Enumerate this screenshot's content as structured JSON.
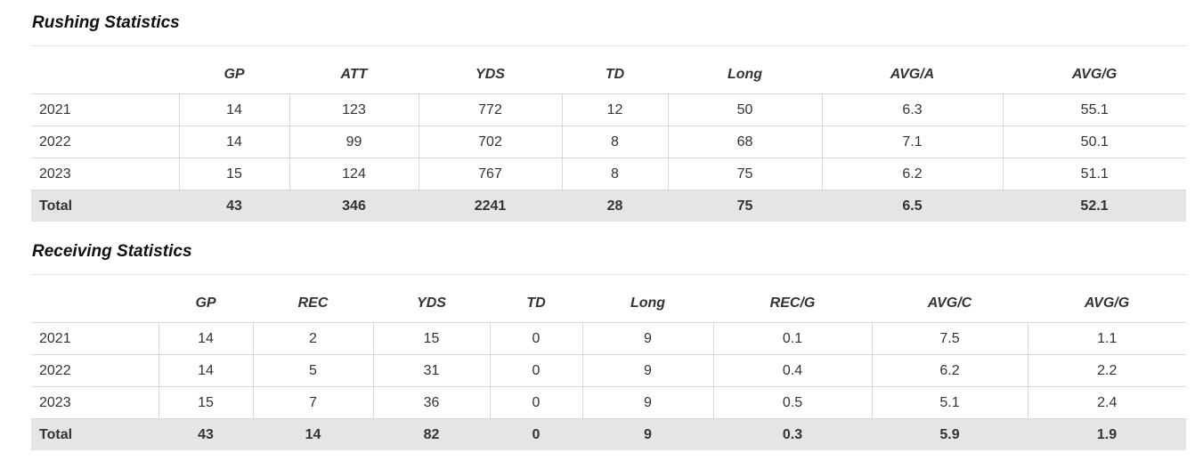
{
  "rushing": {
    "title": "Rushing Statistics",
    "headers": [
      "",
      "GP",
      "ATT",
      "YDS",
      "TD",
      "Long",
      "AVG/A",
      "AVG/G"
    ],
    "rows": [
      [
        "2021",
        "14",
        "123",
        "772",
        "12",
        "50",
        "6.3",
        "55.1"
      ],
      [
        "2022",
        "14",
        "99",
        "702",
        "8",
        "68",
        "7.1",
        "50.1"
      ],
      [
        "2023",
        "15",
        "124",
        "767",
        "8",
        "75",
        "6.2",
        "51.1"
      ]
    ],
    "total": [
      "Total",
      "43",
      "346",
      "2241",
      "28",
      "75",
      "6.5",
      "52.1"
    ]
  },
  "receiving": {
    "title": "Receiving Statistics",
    "headers": [
      "",
      "GP",
      "REC",
      "YDS",
      "TD",
      "Long",
      "REC/G",
      "AVG/C",
      "AVG/G"
    ],
    "rows": [
      [
        "2021",
        "14",
        "2",
        "15",
        "0",
        "9",
        "0.1",
        "7.5",
        "1.1"
      ],
      [
        "2022",
        "14",
        "5",
        "31",
        "0",
        "9",
        "0.4",
        "6.2",
        "2.2"
      ],
      [
        "2023",
        "15",
        "7",
        "36",
        "0",
        "9",
        "0.5",
        "5.1",
        "2.4"
      ]
    ],
    "total": [
      "Total",
      "43",
      "14",
      "82",
      "0",
      "9",
      "0.3",
      "5.9",
      "1.9"
    ]
  }
}
